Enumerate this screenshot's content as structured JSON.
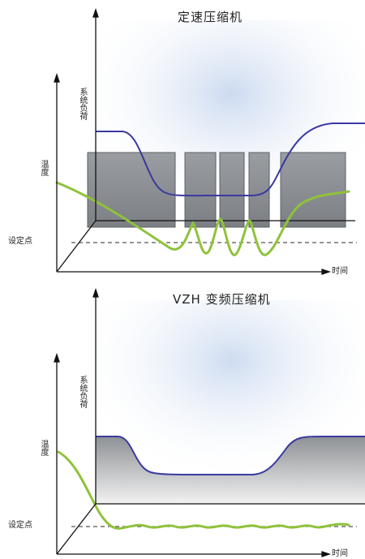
{
  "diagram1": {
    "title": "定速压缩机",
    "axis_system_load": "系统负荷",
    "axis_temperature": "温度",
    "axis_setpoint": "设定点",
    "axis_time": "时间"
  },
  "diagram2": {
    "title": "VZH 变频压缩机",
    "axis_system_load": "系统负荷",
    "axis_temperature": "温度",
    "axis_setpoint": "设定点",
    "axis_time": "时间"
  },
  "colors": {
    "load_line": "#3a3aa0",
    "temperature_line": "#8fc23b",
    "compressor_block": "#8a8d91",
    "axis": "#111111",
    "setpoint_dash": "#555555"
  }
}
